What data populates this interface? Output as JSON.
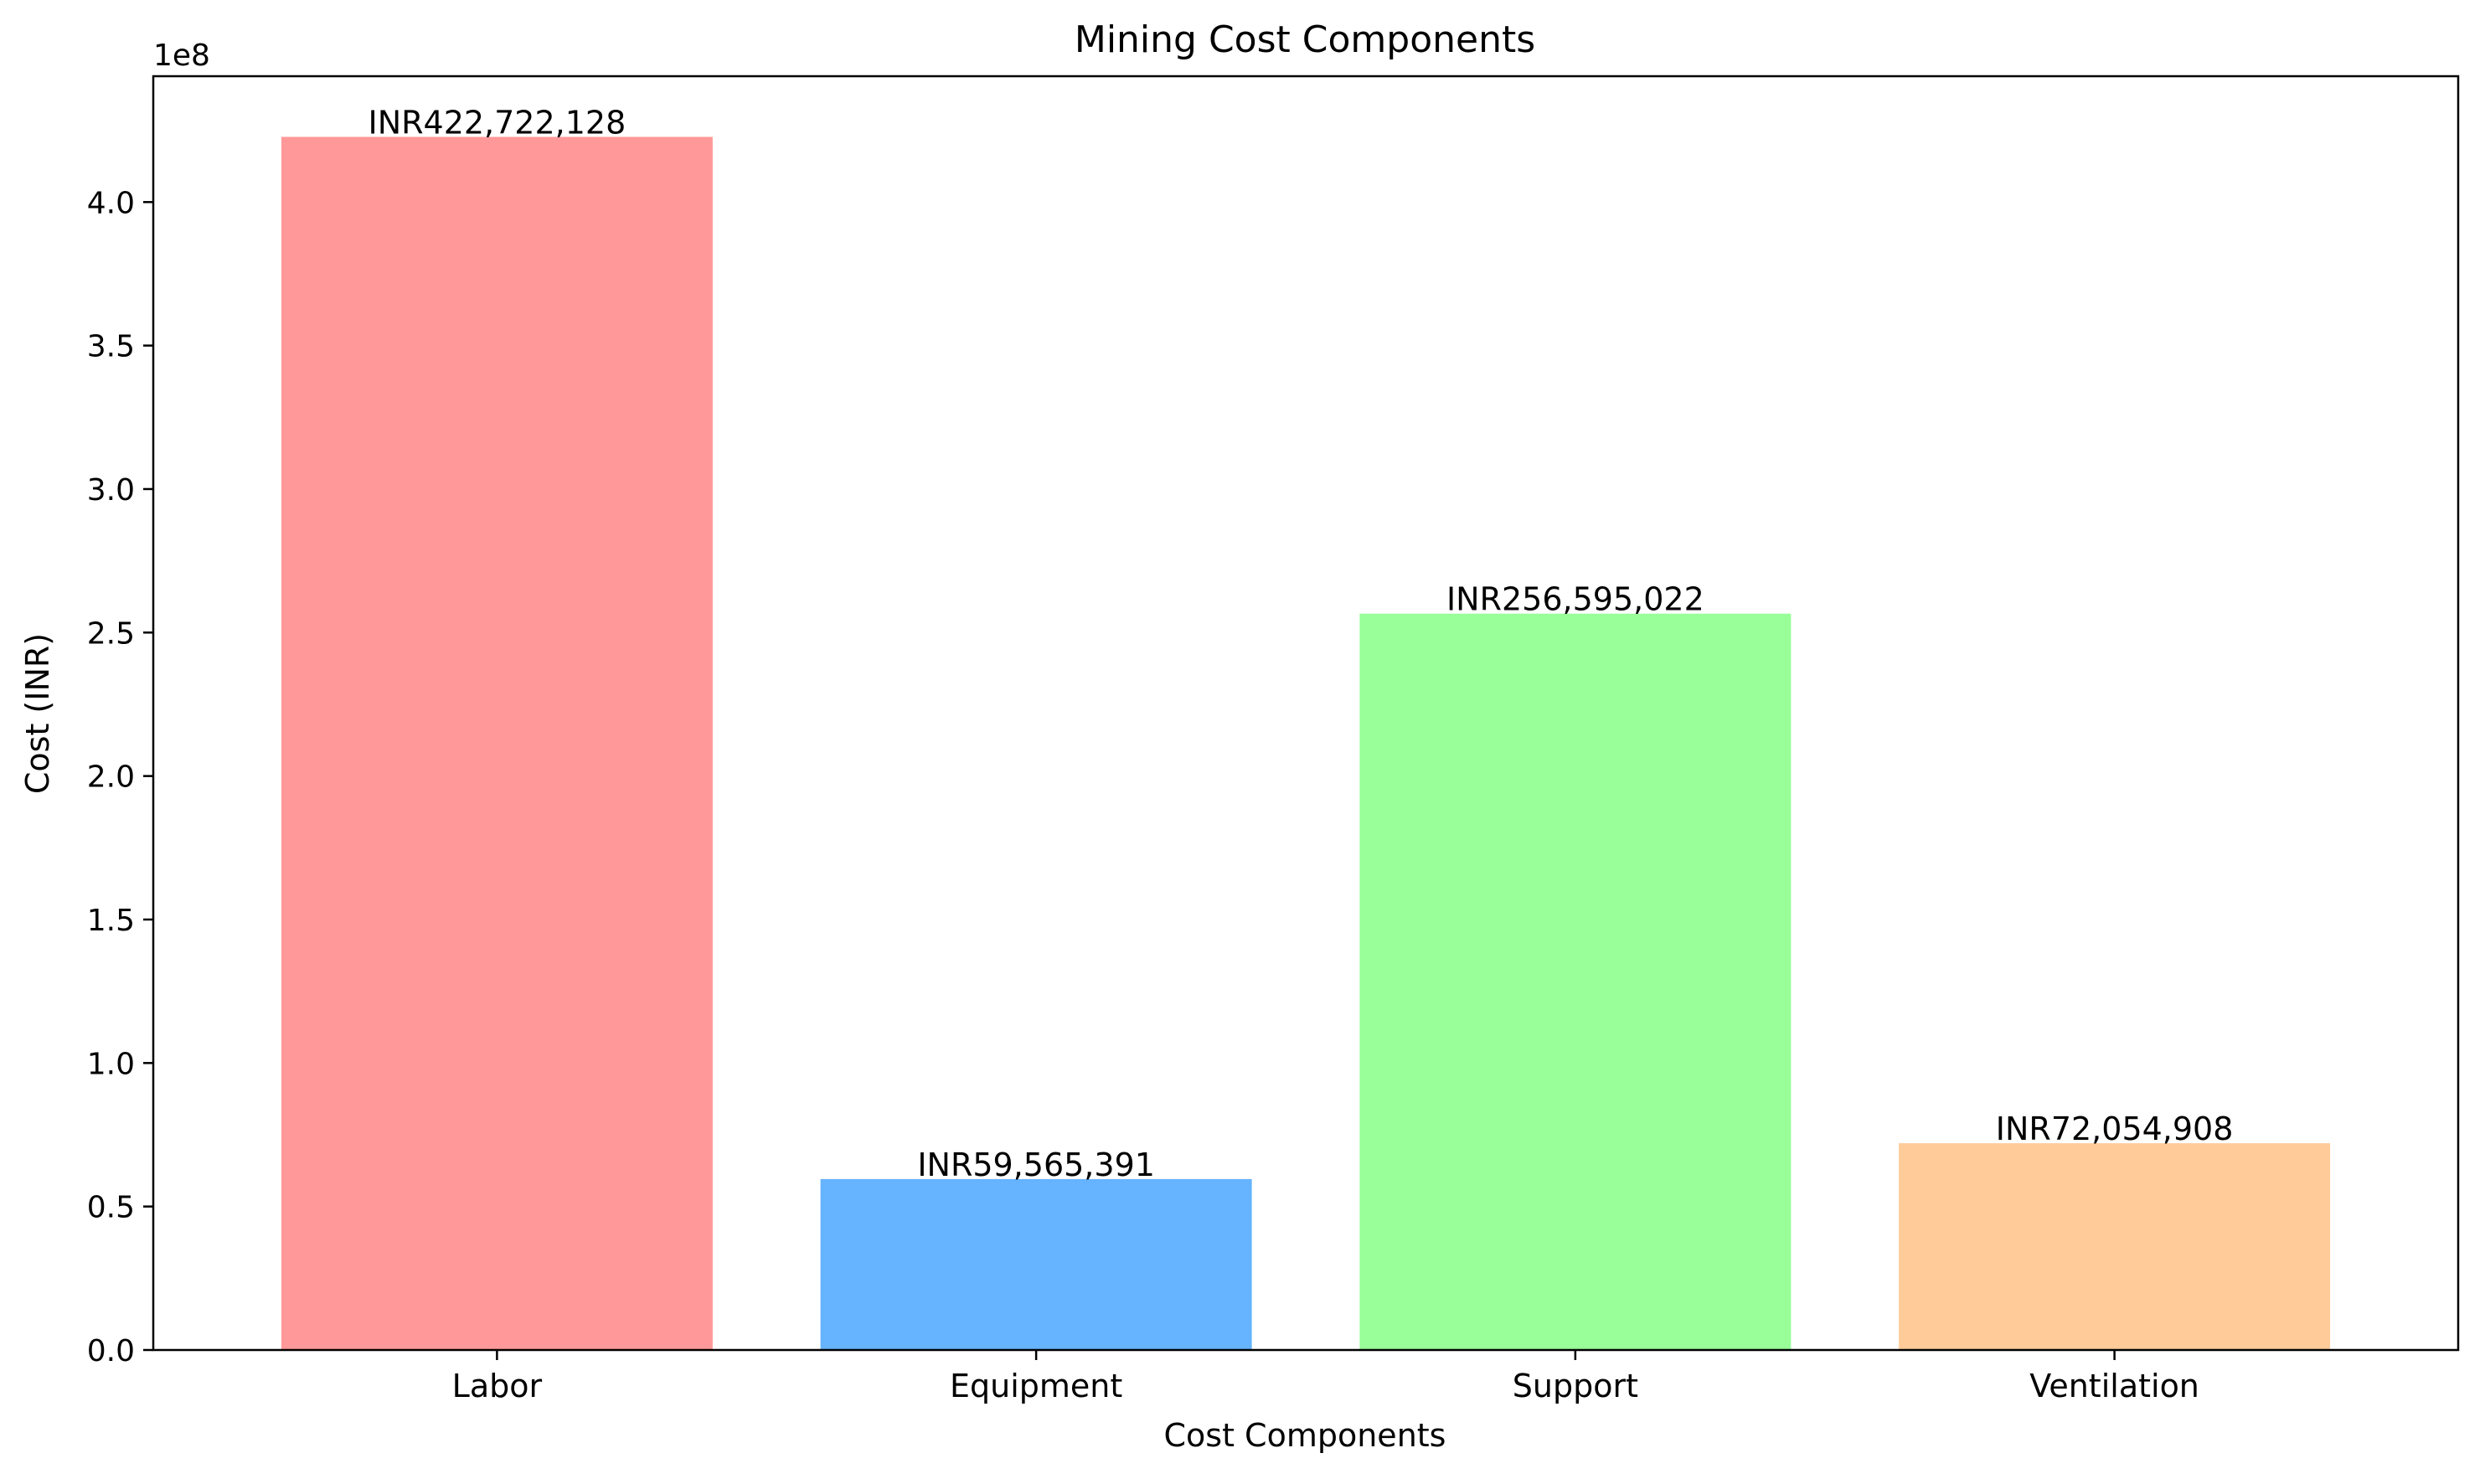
{
  "chart_data": {
    "type": "bar",
    "title": "Mining Cost Components",
    "xlabel": "Cost Components",
    "ylabel": "Cost (INR)",
    "categories": [
      "Labor",
      "Equipment",
      "Support",
      "Ventilation"
    ],
    "values": [
      422722128,
      59565391,
      256595022,
      72054908
    ],
    "value_labels": [
      "INR422,722,128",
      "INR59,565,391",
      "INR256,595,022",
      "INR72,054,908"
    ],
    "colors": [
      "#ff9999",
      "#66b3ff",
      "#99ff99",
      "#ffcc99"
    ],
    "ylim": [
      0,
      443858234
    ],
    "y_ticks": [
      0,
      50000000,
      100000000,
      150000000,
      200000000,
      250000000,
      300000000,
      350000000,
      400000000
    ],
    "y_tick_labels": [
      "0.0",
      "0.5",
      "1.0",
      "1.5",
      "2.0",
      "2.5",
      "3.0",
      "3.5",
      "4.0"
    ],
    "y_offset_label": "1e8",
    "grid": false,
    "legend": "none"
  }
}
